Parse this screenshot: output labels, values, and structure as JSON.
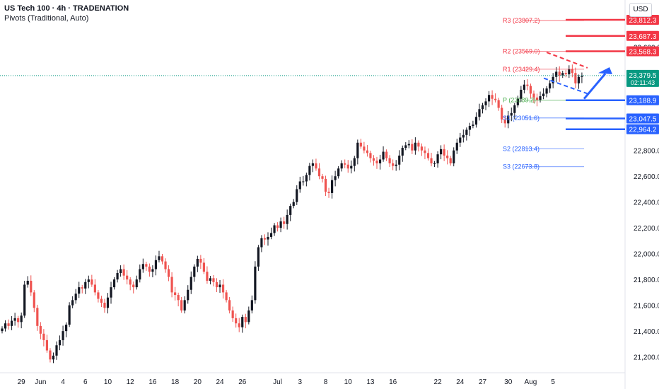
{
  "header": {
    "title": "US Tech 100 · 4h · TRADENATION",
    "indicator": "Pivots (Traditional, Auto)",
    "currency": "USD"
  },
  "colors": {
    "up": "#131722",
    "down": "#ef5350",
    "resistance": "#f23645",
    "support": "#2962ff",
    "pivot": "#4caf50",
    "last_price": "#089981",
    "arrow": "#2962ff"
  },
  "chart_data": {
    "type": "candlestick",
    "ylim": [
      21050,
      23900
    ],
    "y_ticks": [
      "23,600.0",
      "23,400.0",
      "22,800.0",
      "22,600.0",
      "22,400.0",
      "22,200.0",
      "22,000.0",
      "21,800.0",
      "21,600.0",
      "21,400.0",
      "21,200.0"
    ],
    "y_tick_values": [
      23600,
      23400,
      22800,
      22600,
      22400,
      22200,
      22000,
      21800,
      21600,
      21400,
      21200
    ],
    "x_ticks": [
      "29",
      "Jun",
      "4",
      "6",
      "10",
      "12",
      "16",
      "18",
      "20",
      "24",
      "26",
      "Jul",
      "3",
      "8",
      "10",
      "13",
      "16",
      "22",
      "24",
      "27",
      "30",
      "Aug",
      "5"
    ],
    "x_tick_bars": [
      6,
      12,
      19,
      26,
      33,
      40,
      47,
      54,
      61,
      68,
      75,
      86,
      93,
      101,
      108,
      115,
      122,
      136,
      143,
      150,
      158,
      165,
      172
    ],
    "closes": [
      21420,
      21460,
      21440,
      21480,
      21500,
      21470,
      21520,
      21760,
      21790,
      21700,
      21580,
      21440,
      21380,
      21330,
      21250,
      21180,
      21210,
      21290,
      21330,
      21400,
      21450,
      21600,
      21640,
      21690,
      21740,
      21730,
      21780,
      21800,
      21760,
      21700,
      21650,
      21620,
      21580,
      21660,
      21740,
      21800,
      21850,
      21880,
      21830,
      21800,
      21760,
      21740,
      21800,
      21880,
      21920,
      21900,
      21860,
      21880,
      21950,
      21980,
      21940,
      21880,
      21820,
      21700,
      21680,
      21640,
      21560,
      21640,
      21720,
      21820,
      21900,
      21960,
      21930,
      21860,
      21790,
      21810,
      21780,
      21740,
      21760,
      21700,
      21640,
      21560,
      21500,
      21460,
      21430,
      21510,
      21470,
      21560,
      21640,
      21900,
      22050,
      22120,
      22110,
      22130,
      22160,
      22220,
      22200,
      22250,
      22230,
      22300,
      22370,
      22400,
      22500,
      22560,
      22560,
      22610,
      22680,
      22700,
      22660,
      22600,
      22580,
      22480,
      22470,
      22570,
      22600,
      22660,
      22700,
      22690,
      22660,
      22680,
      22740,
      22860,
      22830,
      22800,
      22780,
      22740,
      22720,
      22700,
      22730,
      22790,
      22740,
      22700,
      22680,
      22690,
      22760,
      22820,
      22840,
      22850,
      22800,
      22860,
      22830,
      22800,
      22780,
      22740,
      22700,
      22700,
      22770,
      22810,
      22760,
      22740,
      22700,
      22800,
      22860,
      22900,
      22920,
      22960,
      22990,
      23000,
      23060,
      23120,
      23150,
      23180,
      23230,
      23200,
      23190,
      23130,
      23040,
      23010,
      23070,
      23090,
      23150,
      23200,
      23270,
      23310,
      23300,
      23240,
      23210,
      23190,
      23220,
      23240,
      23280,
      23320,
      23370,
      23410,
      23380,
      23400,
      23390,
      23430,
      23400,
      23320,
      23370,
      23380
    ],
    "last_price": "23,379.5",
    "countdown": "02:11:43",
    "pivot_levels": [
      {
        "name": "R3",
        "label": "R3 (23807.2)",
        "value": 23807.2
      },
      {
        "name": "R2",
        "label": "R2 (23569.0)",
        "value": 23569.0
      },
      {
        "name": "R1",
        "label": "R1 (23429.4)",
        "value": 23429.4
      },
      {
        "name": "P",
        "label": "P (23189.2)",
        "value": 23189.2
      },
      {
        "name": "S1",
        "label": "S1 (23051.6)",
        "value": 23051.6
      },
      {
        "name": "S2",
        "label": "S2 (22813.4)",
        "value": 22813.4
      },
      {
        "name": "S3",
        "label": "S3 (22673.8)",
        "value": 22673.8
      }
    ],
    "resistance_tags": [
      {
        "label": "23,812.3",
        "value": 23812.3
      },
      {
        "label": "23,687.3",
        "value": 23687.3
      },
      {
        "label": "23,568.3",
        "value": 23568.3
      }
    ],
    "support_tags": [
      {
        "label": "23,188.9",
        "value": 23188.9
      },
      {
        "label": "23,047.5",
        "value": 23047.5
      },
      {
        "label": "22,964.2",
        "value": 22964.2
      }
    ]
  }
}
